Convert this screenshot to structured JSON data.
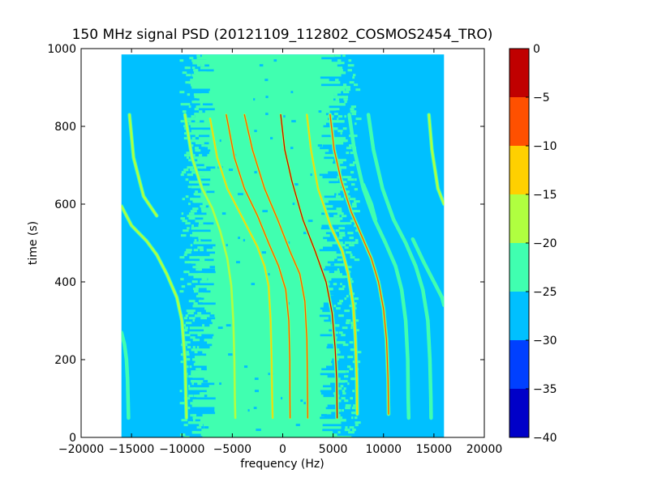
{
  "chart_data": {
    "type": "heatmap",
    "title": "150 MHz signal PSD (20121109_112802_COSMOS2454_TRO)",
    "xlabel": "frequency (Hz)",
    "ylabel": "time (s)",
    "xlim": [
      -20000,
      20000
    ],
    "ylim": [
      0,
      1000
    ],
    "xticks": [
      -20000,
      -15000,
      -10000,
      -5000,
      0,
      5000,
      10000,
      15000,
      20000
    ],
    "xtick_labels": [
      "−20000",
      "−15000",
      "−10000",
      "−5000",
      "0",
      "5000",
      "10000",
      "15000",
      "20000"
    ],
    "yticks": [
      0,
      200,
      400,
      600,
      800,
      1000
    ],
    "ytick_labels": [
      "0",
      "200",
      "400",
      "600",
      "800",
      "1000"
    ],
    "data_extent": {
      "freq_min": -16000,
      "freq_max": 16000,
      "time_min": 0,
      "time_max": 985
    },
    "background_level": -28,
    "center_band": {
      "freq_min": -8000,
      "freq_max": 5000,
      "level": -23
    },
    "colorbar": {
      "levels": [
        -40,
        -35,
        -30,
        -25,
        -20,
        -15,
        -10,
        -5,
        0
      ],
      "tick_labels": [
        "−40",
        "−35",
        "−30",
        "−25",
        "−20",
        "−15",
        "−10",
        "−5",
        "0"
      ],
      "colors": [
        "#0000c8",
        "#0040ff",
        "#00c0ff",
        "#40ffb0",
        "#b0ff40",
        "#ffd000",
        "#ff5000",
        "#c00000"
      ]
    },
    "tracks": [
      {
        "points": [
          [
            -16000,
            595
          ],
          [
            -15000,
            545
          ],
          [
            -13500,
            505
          ],
          [
            -12500,
            470
          ],
          [
            -11500,
            420
          ],
          [
            -10500,
            360
          ],
          [
            -10000,
            300
          ],
          [
            -9700,
            200
          ],
          [
            -9600,
            100
          ],
          [
            -9550,
            50
          ]
        ],
        "peak": -20
      },
      {
        "points": [
          [
            -16000,
            270
          ],
          [
            -15700,
            240
          ],
          [
            -15500,
            200
          ],
          [
            -15400,
            150
          ],
          [
            -15350,
            100
          ],
          [
            -15300,
            50
          ]
        ],
        "peak": -24
      },
      {
        "points": [
          [
            -15200,
            830
          ],
          [
            -14800,
            720
          ],
          [
            -13800,
            620
          ],
          [
            -12500,
            570
          ]
        ],
        "peak": -20
      },
      {
        "points": [
          [
            -9700,
            830
          ],
          [
            -9000,
            720
          ],
          [
            -8000,
            640
          ],
          [
            -7000,
            590
          ],
          [
            -6200,
            530
          ],
          [
            -5500,
            460
          ],
          [
            -5100,
            390
          ],
          [
            -4900,
            300
          ],
          [
            -4800,
            200
          ],
          [
            -4750,
            100
          ],
          [
            -4700,
            50
          ]
        ],
        "peak": -17
      },
      {
        "points": [
          [
            -7200,
            820
          ],
          [
            -6500,
            720
          ],
          [
            -5500,
            640
          ],
          [
            -4500,
            590
          ],
          [
            -3500,
            540
          ],
          [
            -2500,
            490
          ],
          [
            -1800,
            440
          ],
          [
            -1400,
            390
          ],
          [
            -1200,
            300
          ],
          [
            -1100,
            200
          ],
          [
            -1050,
            100
          ],
          [
            -1000,
            50
          ]
        ],
        "peak": -12
      },
      {
        "points": [
          [
            -5600,
            830
          ],
          [
            -4800,
            720
          ],
          [
            -3800,
            640
          ],
          [
            -2500,
            570
          ],
          [
            -1400,
            500
          ],
          [
            -400,
            440
          ],
          [
            300,
            380
          ],
          [
            600,
            300
          ],
          [
            700,
            200
          ],
          [
            720,
            100
          ],
          [
            730,
            50
          ]
        ],
        "peak": -7
      },
      {
        "points": [
          [
            -3800,
            830
          ],
          [
            -3000,
            740
          ],
          [
            -1800,
            640
          ],
          [
            -500,
            560
          ],
          [
            700,
            480
          ],
          [
            1700,
            420
          ],
          [
            2200,
            350
          ],
          [
            2400,
            250
          ],
          [
            2450,
            150
          ],
          [
            2480,
            50
          ]
        ],
        "peak": -10
      },
      {
        "points": [
          [
            -200,
            830
          ],
          [
            200,
            740
          ],
          [
            900,
            660
          ],
          [
            2000,
            560
          ],
          [
            3200,
            480
          ],
          [
            4300,
            400
          ],
          [
            4900,
            320
          ],
          [
            5200,
            230
          ],
          [
            5350,
            150
          ],
          [
            5400,
            50
          ]
        ],
        "peak": -3
      },
      {
        "points": [
          [
            2400,
            830
          ],
          [
            2800,
            740
          ],
          [
            3500,
            640
          ],
          [
            4800,
            540
          ],
          [
            5900,
            480
          ],
          [
            6500,
            420
          ],
          [
            7000,
            340
          ],
          [
            7200,
            260
          ],
          [
            7350,
            150
          ],
          [
            7400,
            60
          ]
        ],
        "peak": -12
      },
      {
        "points": [
          [
            4700,
            830
          ],
          [
            5100,
            740
          ],
          [
            5800,
            660
          ],
          [
            6800,
            580
          ],
          [
            7800,
            520
          ],
          [
            8800,
            460
          ],
          [
            9500,
            400
          ],
          [
            10000,
            330
          ],
          [
            10300,
            250
          ],
          [
            10450,
            150
          ],
          [
            10500,
            60
          ]
        ],
        "peak": -7
      },
      {
        "points": [
          [
            6600,
            830
          ],
          [
            7100,
            740
          ],
          [
            8000,
            640
          ],
          [
            9100,
            560
          ],
          [
            10200,
            500
          ],
          [
            11200,
            440
          ],
          [
            11800,
            380
          ],
          [
            12200,
            300
          ],
          [
            12400,
            200
          ],
          [
            12450,
            100
          ],
          [
            12500,
            50
          ]
        ],
        "peak": -22
      },
      {
        "points": [
          [
            8500,
            830
          ],
          [
            9000,
            740
          ],
          [
            9900,
            640
          ],
          [
            11000,
            560
          ],
          [
            12200,
            500
          ],
          [
            13200,
            440
          ],
          [
            13900,
            380
          ],
          [
            14400,
            300
          ],
          [
            14600,
            200
          ],
          [
            14700,
            100
          ],
          [
            14720,
            50
          ]
        ],
        "peak": -22
      },
      {
        "points": [
          [
            12900,
            510
          ],
          [
            14000,
            450
          ],
          [
            15000,
            400
          ],
          [
            15800,
            360
          ],
          [
            16000,
            340
          ]
        ],
        "peak": -22
      },
      {
        "points": [
          [
            14500,
            830
          ],
          [
            14800,
            740
          ],
          [
            15400,
            640
          ],
          [
            16000,
            600
          ]
        ],
        "peak": -20
      },
      {
        "points": [
          [
            9200,
            560
          ],
          [
            8800,
            600
          ],
          [
            8000,
            650
          ]
        ],
        "peak": -23
      }
    ]
  }
}
